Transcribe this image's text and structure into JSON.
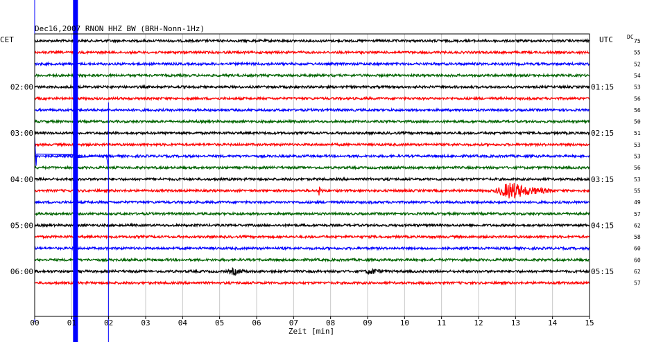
{
  "header": {
    "title": "Dec16,2007   RNON HHZ BW (BRH-Nonn-1Hz)",
    "left_tz": "CET",
    "right_tz": "UTC",
    "dc_label": "DC"
  },
  "chart_data": {
    "type": "line",
    "title": "Dec16,2007   RNON HHZ BW (BRH-Nonn-1Hz)",
    "xlabel": "Zeit [min]",
    "ylabel": "",
    "xlim": [
      0,
      15
    ],
    "x_ticks": [
      "00",
      "01",
      "02",
      "03",
      "04",
      "05",
      "06",
      "07",
      "08",
      "09",
      "10",
      "11",
      "12",
      "13",
      "14",
      "15"
    ],
    "grid": true,
    "trace_colors": [
      "#000000",
      "#ff0000",
      "#0000ff",
      "#006400"
    ],
    "left_hour_labels": [
      {
        "row": 4,
        "text": "02:00"
      },
      {
        "row": 8,
        "text": "03:00"
      },
      {
        "row": 12,
        "text": "04:00"
      },
      {
        "row": 16,
        "text": "05:00"
      },
      {
        "row": 20,
        "text": "06:00"
      }
    ],
    "right_hour_labels": [
      {
        "row": 4,
        "text": "01:15"
      },
      {
        "row": 8,
        "text": "02:15"
      },
      {
        "row": 12,
        "text": "03:15"
      },
      {
        "row": 16,
        "text": "04:15"
      },
      {
        "row": 20,
        "text": "05:15"
      }
    ],
    "dc_values": [
      "75",
      "55",
      "52",
      "54",
      "53",
      "56",
      "56",
      "50",
      "51",
      "53",
      "53",
      "56",
      "53",
      "55",
      "49",
      "57",
      "62",
      "58",
      "60",
      "60",
      "62",
      "57"
    ],
    "events": [
      {
        "row": 13,
        "start_min": 7.65,
        "end_min": 7.8,
        "amplitude": 7
      },
      {
        "row": 13,
        "start_min": 12.4,
        "end_min": 14.0,
        "amplitude": 12
      },
      {
        "row": 20,
        "start_min": 5.2,
        "end_min": 5.8,
        "amplitude": 4
      },
      {
        "row": 20,
        "start_min": 8.9,
        "end_min": 9.5,
        "amplitude": 4
      }
    ],
    "disturbance_minutes": [
      0.55,
      1.0
    ]
  }
}
